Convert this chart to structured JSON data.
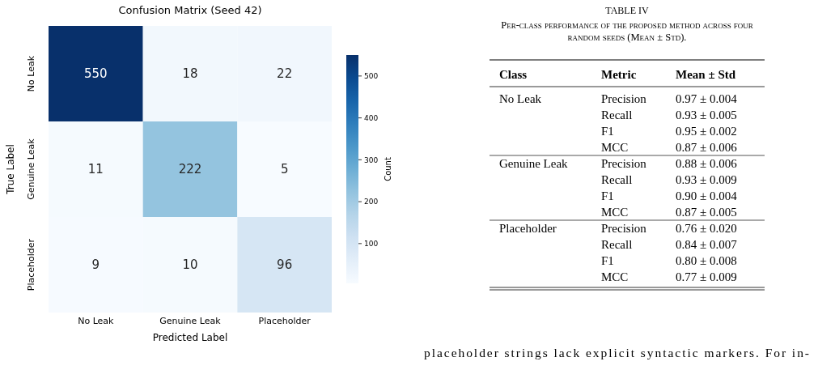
{
  "chart_data": [
    {
      "type": "heatmap",
      "title": "Confusion Matrix (Seed 42)",
      "xlabel": "Predicted Label",
      "ylabel": "True Label",
      "clabel": "Count",
      "categories": [
        "No Leak",
        "Genuine Leak",
        "Placeholder"
      ],
      "y_categories": [
        "No Leak",
        "Genuine Leak",
        "Placeholder"
      ],
      "cells": [
        [
          550,
          18,
          22
        ],
        [
          11,
          222,
          5
        ],
        [
          9,
          10,
          96
        ]
      ],
      "clim": [
        5,
        550
      ],
      "cticks": [
        100,
        200,
        300,
        400,
        500
      ],
      "data_labels": true
    },
    {
      "type": "other",
      "title": "TABLE IV",
      "subtitle": "Per-class performance of the proposed method across four random seeds (Mean ± Std).",
      "categories": [
        "Class",
        "Metric",
        "Mean ± Std"
      ],
      "cell_labels": [
        [
          "No Leak",
          "Precision",
          "0.97 ± 0.004"
        ],
        [
          null,
          "Recall",
          "0.93 ± 0.005"
        ],
        [
          null,
          "F1",
          "0.95 ± 0.002"
        ],
        [
          null,
          "MCC",
          "0.87 ± 0.006"
        ],
        [
          "Genuine Leak",
          "Precision",
          "0.88 ± 0.006"
        ],
        [
          null,
          "Recall",
          "0.93 ± 0.009"
        ],
        [
          null,
          "F1",
          "0.90 ± 0.004"
        ],
        [
          null,
          "MCC",
          "0.87 ± 0.005"
        ],
        [
          "Placeholder",
          "Precision",
          "0.76 ± 0.020"
        ],
        [
          null,
          "Recall",
          "0.84 ± 0.007"
        ],
        [
          null,
          "F1",
          "0.80 ± 0.008"
        ],
        [
          null,
          "MCC",
          "0.77 ± 0.009"
        ]
      ],
      "annotations": [
        "placeholder strings lack explicit syntactic markers. For in-"
      ]
    }
  ]
}
